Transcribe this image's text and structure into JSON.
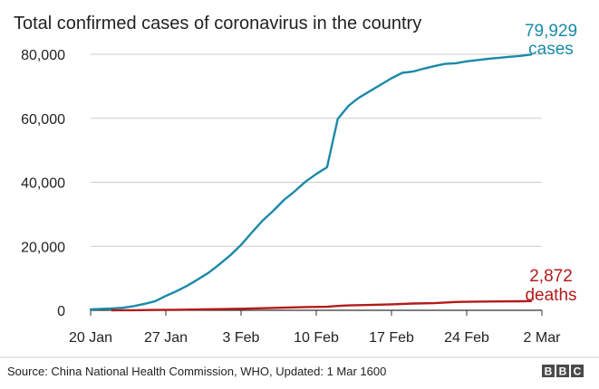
{
  "chart_data": {
    "type": "line",
    "title": "Total confirmed cases of coronavirus in the country",
    "xlabel": "",
    "ylabel": "",
    "ylim": [
      0,
      80000
    ],
    "y_ticks": [
      0,
      20000,
      40000,
      60000,
      80000
    ],
    "y_tick_labels": [
      "0",
      "20,000",
      "40,000",
      "60,000",
      "80,000"
    ],
    "xlim_day": [
      0,
      42
    ],
    "x_ticks": [
      {
        "day": 0,
        "label": "20 Jan"
      },
      {
        "day": 7,
        "label": "27 Jan"
      },
      {
        "day": 14,
        "label": "3 Feb"
      },
      {
        "day": 21,
        "label": "10 Feb"
      },
      {
        "day": 28,
        "label": "17 Feb"
      },
      {
        "day": 35,
        "label": "24 Feb"
      },
      {
        "day": 42,
        "label": "2 Mar"
      }
    ],
    "grid": true,
    "series": [
      {
        "name": "cases",
        "color": "#1a8aa8",
        "x_day": [
          0,
          1,
          2,
          3,
          4,
          5,
          6,
          7,
          8,
          9,
          10,
          11,
          12,
          13,
          14,
          15,
          16,
          17,
          18,
          19,
          20,
          21,
          22,
          23,
          24,
          24.6,
          25,
          26,
          27,
          28,
          29,
          30,
          31,
          32,
          33,
          34,
          35,
          36,
          37,
          38,
          39,
          40,
          41
        ],
        "values": [
          300,
          450,
          600,
          800,
          1300,
          2000,
          2800,
          4500,
          6000,
          7700,
          9700,
          11800,
          14400,
          17200,
          20400,
          24300,
          28000,
          31100,
          34500,
          37200,
          40200,
          42600,
          44700,
          59800,
          63900,
          65500,
          66500,
          68500,
          70500,
          72500,
          74200,
          74600,
          75500,
          76300,
          77000,
          77200,
          77800,
          78200,
          78600,
          78900,
          79200,
          79500,
          79929
        ]
      },
      {
        "name": "deaths",
        "color": "#b31b1b",
        "x_day": [
          2,
          4,
          6,
          8,
          10,
          12,
          14,
          16,
          18,
          20,
          22,
          23,
          24,
          26,
          28,
          30,
          32,
          34,
          36,
          38,
          40,
          41
        ],
        "values": [
          0,
          40,
          100,
          170,
          260,
          360,
          490,
          640,
          810,
          1010,
          1110,
          1370,
          1520,
          1680,
          1870,
          2120,
          2240,
          2590,
          2700,
          2780,
          2840,
          2872
        ]
      }
    ],
    "annotations": [
      {
        "series": "cases",
        "value": "79,929",
        "label": "cases"
      },
      {
        "series": "deaths",
        "value": "2,872",
        "label": "deaths"
      }
    ]
  },
  "footer": {
    "source": "Source: China National Health Commission, WHO, Updated: 1 Mar 1600",
    "logo_letters": [
      "B",
      "B",
      "C"
    ]
  },
  "colors": {
    "cases": "#1a8aa8",
    "deaths": "#b31b1b",
    "grid": "#cccccc",
    "axis": "#333333"
  }
}
